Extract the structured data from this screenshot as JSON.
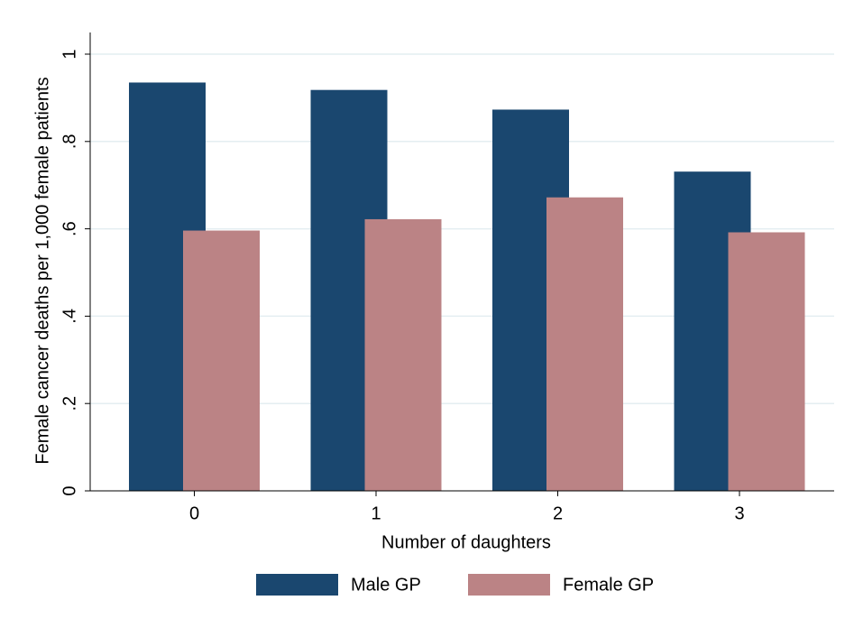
{
  "chart_data": {
    "type": "bar",
    "categories": [
      "0",
      "1",
      "2",
      "3"
    ],
    "x_label": "Number of daughters",
    "y_label": "Female cancer deaths per 1,000 female patients",
    "series": [
      {
        "name": "Male GP",
        "color": "#1a476f",
        "values": [
          0.935,
          0.918,
          0.873,
          0.731
        ]
      },
      {
        "name": "Female GP",
        "color": "#bb8385",
        "values": [
          0.596,
          0.622,
          0.672,
          0.592
        ]
      }
    ],
    "ylim": [
      0,
      1
    ],
    "yticks": [
      0,
      {
        "value": 0.2,
        "label": ".2"
      },
      {
        "value": 0.4,
        "label": ".4"
      },
      {
        "value": 0.6,
        "label": ".6"
      },
      {
        "value": 0.8,
        "label": ".8"
      },
      1
    ],
    "grid": true,
    "legend": "bottom"
  }
}
